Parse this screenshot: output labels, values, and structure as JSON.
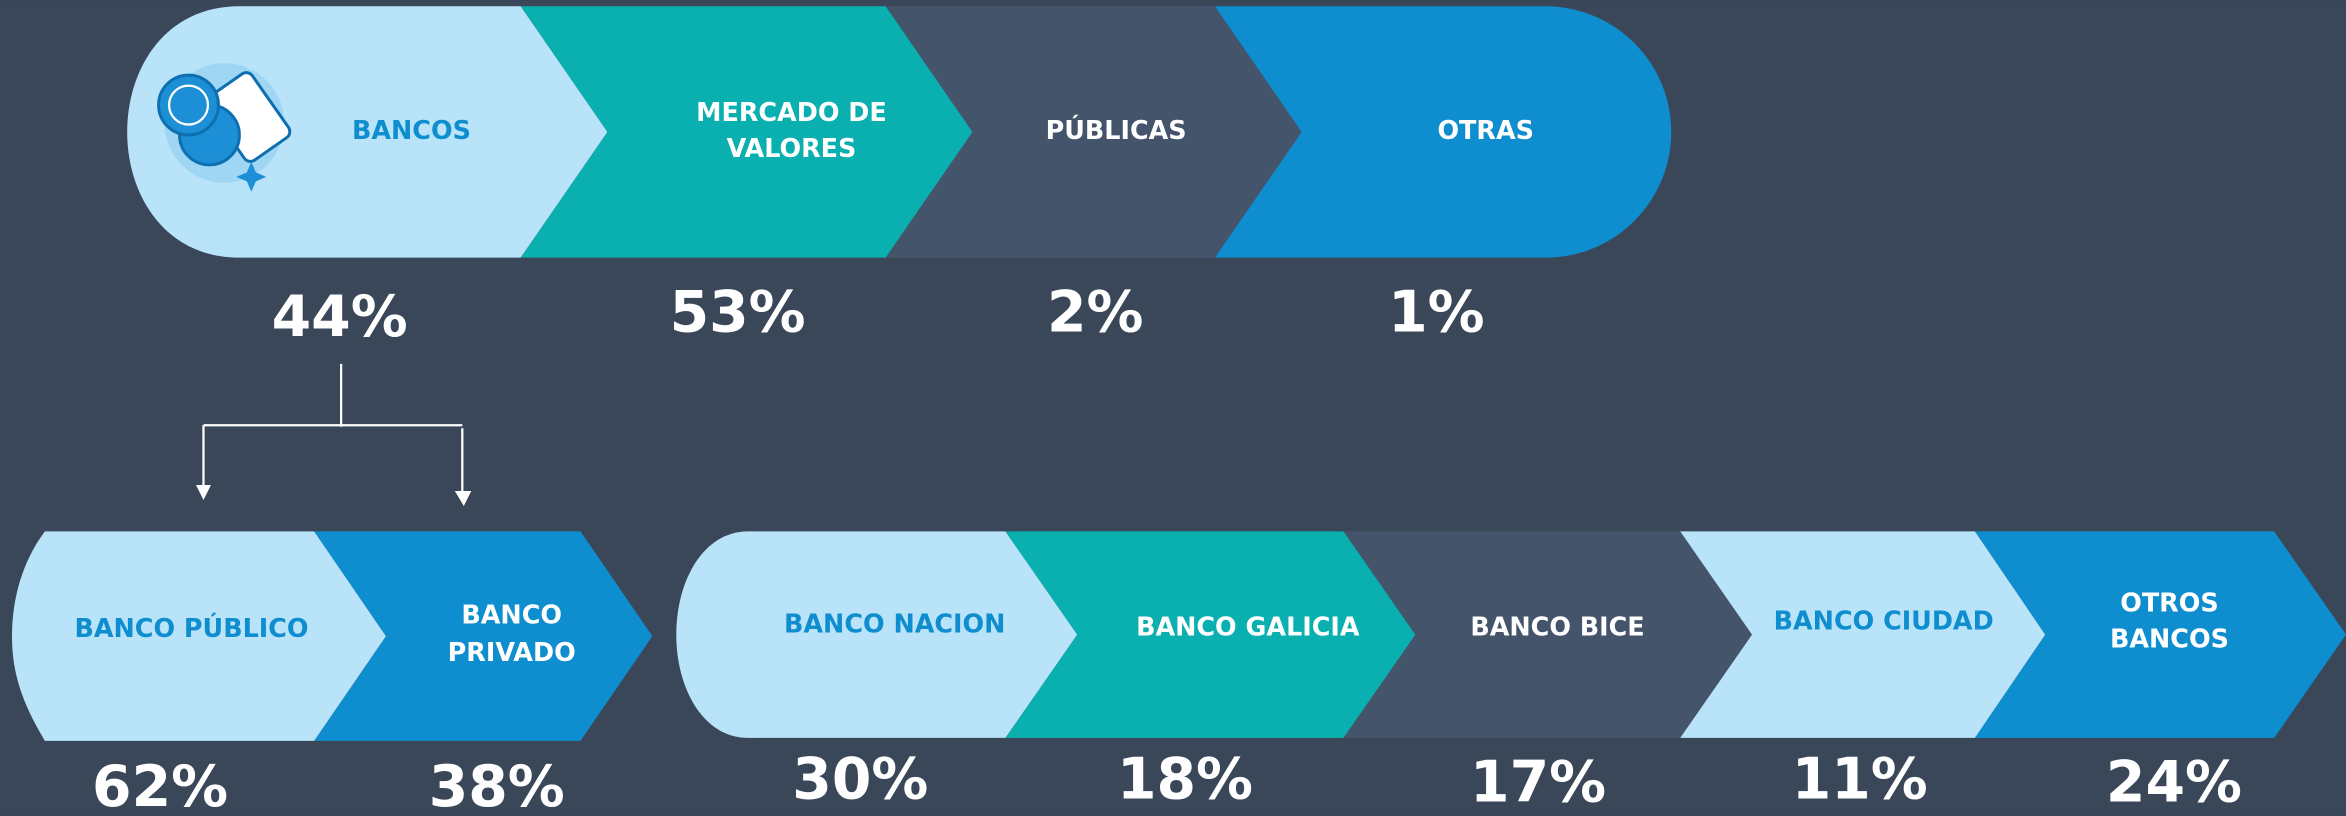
{
  "top": {
    "segments": [
      {
        "label": [
          "BANCOS"
        ],
        "value": "44%"
      },
      {
        "label": [
          "MERCADO DE",
          "VALORES"
        ],
        "value": "53%"
      },
      {
        "label": [
          "PÚBLICAS"
        ],
        "value": "2%"
      },
      {
        "label": [
          "OTRAS"
        ],
        "value": "1%"
      }
    ]
  },
  "banks_type": {
    "segments": [
      {
        "label": [
          "BANCO PÚBLICO"
        ],
        "value": "62%"
      },
      {
        "label": [
          "BANCO",
          "PRIVADO"
        ],
        "value": "38%"
      }
    ]
  },
  "banks": {
    "segments": [
      {
        "label": [
          "BANCO NACION"
        ],
        "value": "30%"
      },
      {
        "label": [
          "BANCO GALICIA"
        ],
        "value": "18%"
      },
      {
        "label": [
          "BANCO BICE"
        ],
        "value": "17%"
      },
      {
        "label": [
          "BANCO CIUDAD"
        ],
        "value": "11%"
      },
      {
        "label": [
          "OTROS",
          "BANCOS"
        ],
        "value": "24%"
      }
    ]
  }
}
